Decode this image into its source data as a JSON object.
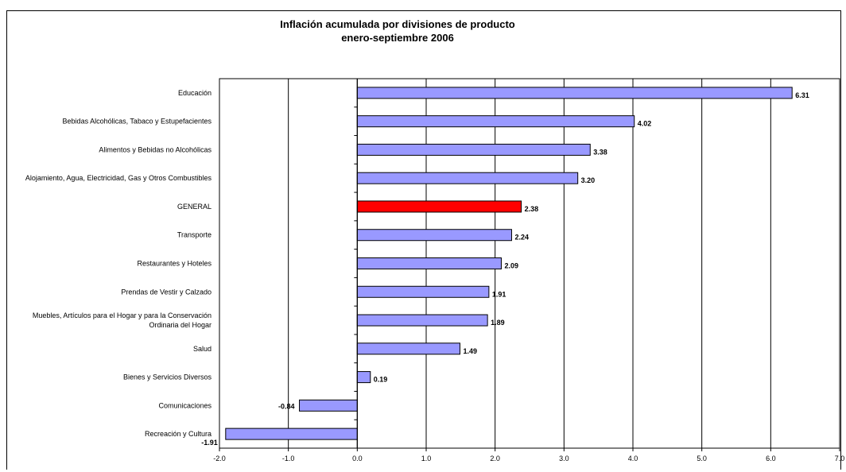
{
  "chart_data": {
    "type": "bar",
    "orientation": "horizontal",
    "title": "Inflación acumulada por divisiones de producto",
    "subtitle": "enero-septiembre 2006",
    "categories": [
      "Educación",
      "Bebidas Alcohólicas, Tabaco y Estupefacientes",
      "Alimentos y Bebidas no Alcohólicas",
      "Alojamiento, Agua, Electricidad, Gas y Otros Combustibles",
      "GENERAL",
      "Transporte",
      "Restaurantes y Hoteles",
      "Prendas de Vestir y Calzado",
      "Muebles, Artículos para el Hogar y para la Conservación Ordinaria del Hogar",
      "Salud",
      "Bienes y Servicios Diversos",
      "Comunicaciones",
      "Recreación y Cultura"
    ],
    "category_lines": [
      [
        "Educación"
      ],
      [
        "Bebidas Alcohólicas, Tabaco y Estupefacientes"
      ],
      [
        "Alimentos y Bebidas no Alcohólicas"
      ],
      [
        "Alojamiento, Agua, Electricidad, Gas y Otros Combustibles"
      ],
      [
        "GENERAL"
      ],
      [
        "Transporte"
      ],
      [
        "Restaurantes y Hoteles"
      ],
      [
        "Prendas de Vestir y Calzado"
      ],
      [
        "Muebles, Artículos para el Hogar y para la Conservación",
        "Ordinaria del Hogar"
      ],
      [
        "Salud"
      ],
      [
        "Bienes y Servicios Diversos"
      ],
      [
        "Comunicaciones"
      ],
      [
        "Recreación y Cultura"
      ]
    ],
    "values": [
      6.31,
      4.02,
      3.38,
      3.2,
      2.38,
      2.24,
      2.09,
      1.91,
      1.89,
      1.49,
      0.19,
      -0.84,
      -1.91
    ],
    "value_labels": [
      "6.31",
      "4.02",
      "3.38",
      "3.20",
      "2.38",
      "2.24",
      "2.09",
      "1.91",
      "1.89",
      "1.49",
      "0.19",
      "-0.84",
      "-1.91"
    ],
    "highlight_category": "GENERAL",
    "colors": {
      "bar": "#9999ff",
      "highlight": "#ff0000",
      "outline": "#000000"
    },
    "xlim": [
      -2.0,
      7.0
    ],
    "xticks": [
      "-2.0",
      "-1.0",
      "0.0",
      "1.0",
      "2.0",
      "3.0",
      "4.0",
      "5.0",
      "6.0",
      "7.0"
    ],
    "grid": "vertical"
  }
}
